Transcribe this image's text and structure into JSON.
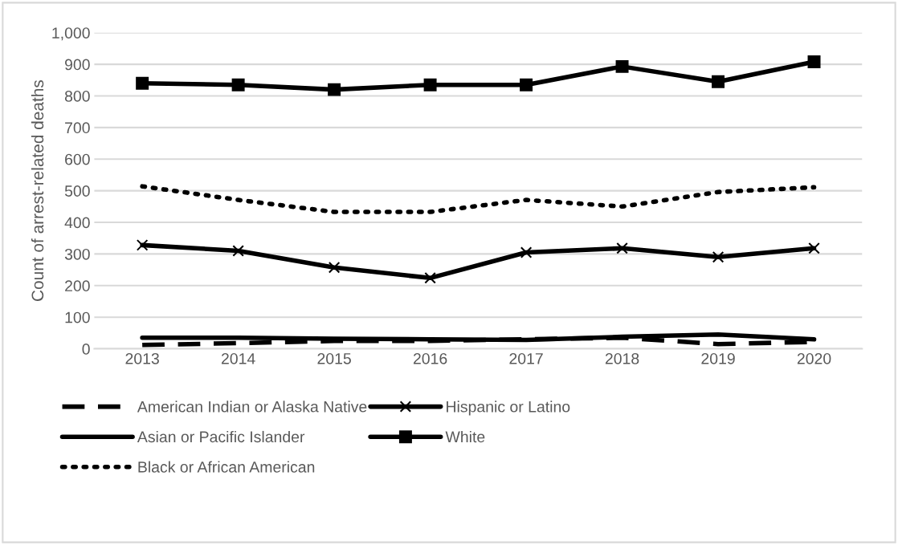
{
  "chart_data": {
    "type": "line",
    "ylabel": "Count of arrest-related deaths",
    "categories": [
      "2013",
      "2014",
      "2015",
      "2016",
      "2017",
      "2018",
      "2019",
      "2020"
    ],
    "ylim": [
      0,
      1000
    ],
    "yticks": [
      0,
      100,
      200,
      300,
      400,
      500,
      600,
      700,
      800,
      900,
      {
        "value": 1000,
        "label": "1,000"
      }
    ],
    "grid": "y",
    "legend": "bottom",
    "series": [
      {
        "name": "American Indian or Alaska Native",
        "color": "#000000",
        "line_style": "dashed",
        "marker": "none",
        "values": [
          12,
          18,
          25,
          25,
          30,
          35,
          15,
          22
        ]
      },
      {
        "name": "Asian or Pacific Islander",
        "color": "#000000",
        "line_style": "solid",
        "marker": "none",
        "values": [
          35,
          35,
          32,
          30,
          28,
          38,
          45,
          30
        ]
      },
      {
        "name": "Black or African American",
        "color": "#000000",
        "line_style": "dotted",
        "marker": "none",
        "values": [
          514,
          471,
          433,
          433,
          471,
          450,
          496,
          511
        ]
      },
      {
        "name": "Hispanic or Latino",
        "color": "#000000",
        "line_style": "solid",
        "marker": "cross",
        "values": [
          328,
          310,
          257,
          224,
          305,
          318,
          290,
          318
        ]
      },
      {
        "name": "White",
        "color": "#000000",
        "line_style": "solid",
        "marker": "square",
        "values": [
          840,
          835,
          820,
          835,
          835,
          893,
          845,
          908
        ]
      }
    ]
  }
}
